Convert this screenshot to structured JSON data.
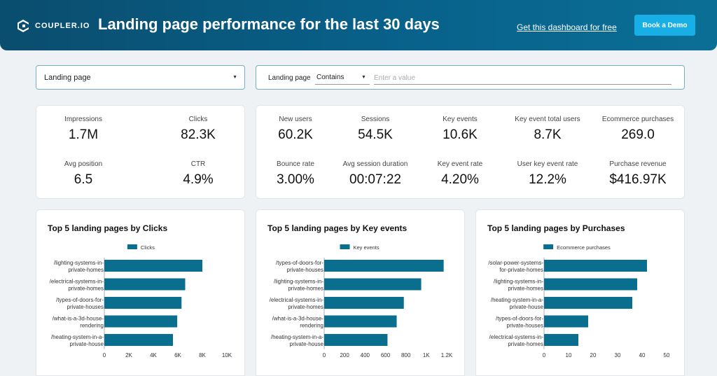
{
  "header": {
    "logo_text": "COUPLER.IO",
    "title": "Landing page performance for the last 30 days",
    "link": "Get this dashboard for free",
    "button": "Book a Demo"
  },
  "filters": {
    "landing_select": "Landing page",
    "field_label": "Landing page",
    "operator": "Contains",
    "value_placeholder": "Enter a value"
  },
  "search_kpis": [
    {
      "label": "Impressions",
      "value": "1.7M"
    },
    {
      "label": "Clicks",
      "value": "82.3K"
    },
    {
      "label": "Avg position",
      "value": "6.5"
    },
    {
      "label": "CTR",
      "value": "4.9%"
    }
  ],
  "analytics_kpis": [
    {
      "label": "New users",
      "value": "60.2K"
    },
    {
      "label": "Sessions",
      "value": "54.5K"
    },
    {
      "label": "Key events",
      "value": "10.6K"
    },
    {
      "label": "Key event total users",
      "value": "8.7K"
    },
    {
      "label": "Ecommerce purchases",
      "value": "269.0"
    },
    {
      "label": "Bounce rate",
      "value": "3.00%"
    },
    {
      "label": "Avg session duration",
      "value": "00:07:22"
    },
    {
      "label": "Key event rate",
      "value": "4.20%"
    },
    {
      "label": "User key event rate",
      "value": "12.2%"
    },
    {
      "label": "Purchase revenue",
      "value": "$416.97K"
    }
  ],
  "colors": {
    "bar": "#0a6f8f",
    "accent": "#18aee6"
  },
  "chart_data": [
    {
      "type": "bar",
      "orientation": "horizontal",
      "title": "Top 5 landing pages by Clicks",
      "categories": [
        [
          "/lighting-systems-in-",
          "private-homes"
        ],
        [
          "/electrical-systems-in-",
          "private-homes"
        ],
        [
          "/types-of-doors-for-",
          "private-houses"
        ],
        [
          "/what-is-a-3d-house-",
          "rendering"
        ],
        [
          "/heating-system-in-a-",
          "private-house"
        ]
      ],
      "series": [
        {
          "name": "Clicks",
          "values": [
            8000,
            6600,
            6300,
            5950,
            5600
          ]
        }
      ],
      "xlim": [
        0,
        10000
      ],
      "ticks": [
        0,
        2000,
        4000,
        6000,
        8000,
        10000
      ],
      "tick_labels": [
        "0",
        "2K",
        "4K",
        "6K",
        "8K",
        "10K"
      ]
    },
    {
      "type": "bar",
      "orientation": "horizontal",
      "title": "Top 5 landing pages by Key events",
      "categories": [
        [
          "/types-of-doors-for-",
          "private-houses"
        ],
        [
          "/lighting-systems-in-",
          "private-homes"
        ],
        [
          "/electrical-systems-in-",
          "private-homes"
        ],
        [
          "/what-is-a-3d-house-",
          "rendering"
        ],
        [
          "/heating-system-in-a-",
          "private-house"
        ]
      ],
      "series": [
        {
          "name": "Key events",
          "values": [
            1170,
            950,
            780,
            710,
            620
          ]
        }
      ],
      "xlim": [
        0,
        1200
      ],
      "ticks": [
        0,
        200,
        400,
        600,
        800,
        1000,
        1200
      ],
      "tick_labels": [
        "0",
        "200",
        "400",
        "600",
        "800",
        "1K",
        "1.2K"
      ]
    },
    {
      "type": "bar",
      "orientation": "horizontal",
      "title": "Top 5 landing pages by Purchases",
      "categories": [
        [
          "/solar-power-systems-",
          "for-private-homes"
        ],
        [
          "/lighting-systems-in-",
          "private-homes"
        ],
        [
          "/heating-system-in-a-",
          "private-house"
        ],
        [
          "/types-of-doors-for-",
          "private-houses"
        ],
        [
          "/electrical-systems-in-",
          "private-homes"
        ]
      ],
      "series": [
        {
          "name": "Ecommerce purchases",
          "values": [
            42,
            38,
            36,
            18,
            14
          ]
        }
      ],
      "xlim": [
        0,
        50
      ],
      "ticks": [
        0,
        10,
        20,
        30,
        40,
        50
      ],
      "tick_labels": [
        "0",
        "10",
        "20",
        "30",
        "40",
        "50"
      ]
    }
  ]
}
